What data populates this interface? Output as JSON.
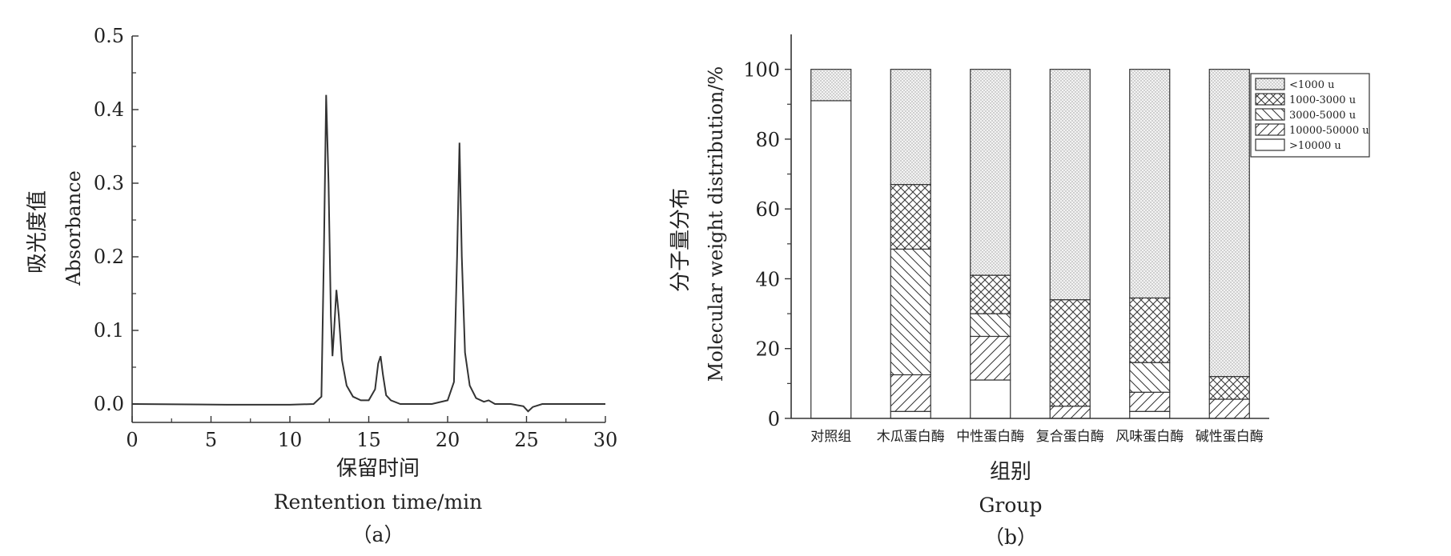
{
  "chart_data": [
    {
      "type": "line",
      "panel_label": "（a）",
      "ylabel_cn": "吸光度值",
      "ylabel_en": "Absorbance",
      "xlabel_cn": "保留时间",
      "xlabel_en": "Rentention time/min",
      "xlim": [
        0,
        30
      ],
      "ylim": [
        -0.025,
        0.5
      ],
      "xticks": [
        "0",
        "5",
        "10",
        "15",
        "20",
        "25",
        "30"
      ],
      "yticks": [
        "0.0",
        "0.1",
        "0.2",
        "0.3",
        "0.4",
        "0.5"
      ],
      "grid": false,
      "series": [
        {
          "x": [
            0,
            6,
            10,
            11.5,
            12.0,
            12.15,
            12.3,
            12.45,
            12.6,
            12.7,
            12.8,
            12.95,
            13.1,
            13.3,
            13.6,
            14.0,
            14.5,
            15.0,
            15.4,
            15.6,
            15.75,
            15.9,
            16.1,
            16.4,
            17,
            18,
            19,
            20.0,
            20.4,
            20.6,
            20.75,
            20.9,
            21.1,
            21.4,
            21.8,
            22.3,
            22.6,
            23.0,
            24.0,
            24.8,
            25.1,
            25.4,
            26,
            28,
            30
          ],
          "y": [
            0.0,
            -0.001,
            -0.001,
            0.0,
            0.01,
            0.2,
            0.42,
            0.3,
            0.12,
            0.065,
            0.1,
            0.155,
            0.12,
            0.06,
            0.025,
            0.01,
            0.005,
            0.005,
            0.02,
            0.055,
            0.065,
            0.04,
            0.012,
            0.005,
            0.0,
            0.0,
            0.0,
            0.005,
            0.03,
            0.2,
            0.355,
            0.2,
            0.07,
            0.025,
            0.008,
            0.003,
            0.005,
            0.0,
            0.0,
            -0.003,
            -0.01,
            -0.004,
            0.0,
            0.0,
            0.0
          ]
        }
      ]
    },
    {
      "type": "bar",
      "stacked": true,
      "panel_label": "（b）",
      "ylabel_cn": "分子量分布",
      "ylabel_en": "Molecular  weight  distribution/%",
      "xlabel_cn": "组别",
      "xlabel_en": "Group",
      "ylim": [
        0,
        110
      ],
      "yticks": [
        "0",
        "20",
        "40",
        "60",
        "80",
        "100"
      ],
      "categories": [
        "对照组",
        "木瓜蛋白酶",
        "中性蛋白酶",
        "复合蛋白酶",
        "风味蛋白酶",
        "碱性蛋白酶"
      ],
      "legend_position": "top-right",
      "series": [
        {
          "name": ">10000 u",
          "values": [
            91,
            2,
            11,
            0,
            2,
            0
          ]
        },
        {
          "name": "10000-50000 u",
          "values": [
            0,
            10.5,
            12.5,
            3.5,
            5.5,
            5.5
          ]
        },
        {
          "name": "3000-5000 u",
          "values": [
            0,
            36,
            6.5,
            0,
            8.5,
            0
          ]
        },
        {
          "name": "1000-3000 u",
          "values": [
            0,
            18.5,
            11,
            30.5,
            18.5,
            6.5
          ]
        },
        {
          "name": "<1000 u",
          "values": [
            9,
            33,
            59,
            66,
            65.5,
            88
          ]
        }
      ],
      "legend_labels": [
        "<1000 u",
        "1000-3000 u",
        "3000-5000 u",
        "10000-50000 u",
        ">10000 u"
      ]
    }
  ]
}
